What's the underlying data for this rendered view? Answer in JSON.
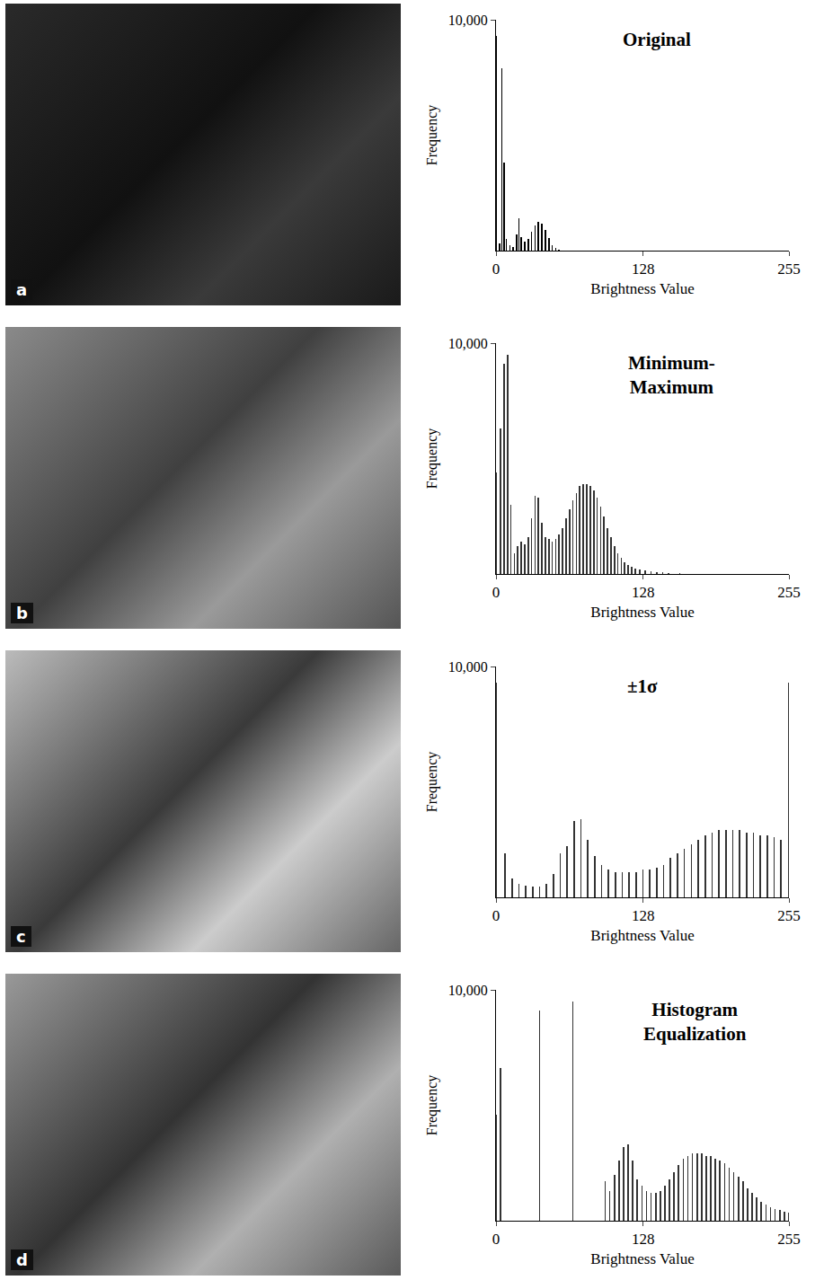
{
  "chart_data": [
    {
      "type": "bar",
      "panel": "a",
      "title": "Original",
      "x_label": "Brightness Value",
      "y_label": "Frequency",
      "x": [
        0,
        3,
        5,
        7,
        9,
        12,
        15,
        18,
        20,
        22,
        25,
        28,
        31,
        34,
        37,
        40,
        43,
        46,
        49,
        52,
        55
      ],
      "values": [
        9300,
        300,
        7900,
        3800,
        500,
        250,
        150,
        700,
        1400,
        600,
        400,
        500,
        800,
        1100,
        1250,
        1150,
        900,
        550,
        250,
        100,
        40
      ],
      "color": "#000000",
      "xlim": [
        0,
        255
      ],
      "ylim": [
        0,
        10000
      ],
      "xticks": [
        0,
        128,
        255
      ],
      "yticks": [
        {
          "value": 10000,
          "label": "10,000"
        }
      ],
      "grid": false
    },
    {
      "type": "bar",
      "panel": "b",
      "title": "Minimum-Maximum",
      "x_label": "Brightness Value",
      "y_label": "Frequency",
      "x": [
        0,
        4,
        7,
        10,
        13,
        16,
        19,
        22,
        25,
        28,
        31,
        34,
        37,
        40,
        43,
        46,
        49,
        52,
        55,
        58,
        61,
        64,
        67,
        70,
        73,
        76,
        79,
        82,
        85,
        88,
        91,
        94,
        97,
        100,
        103,
        106,
        109,
        112,
        115,
        118,
        121,
        125,
        130,
        135,
        140,
        145,
        150,
        160
      ],
      "values": [
        4400,
        6300,
        9100,
        9500,
        3000,
        900,
        1200,
        1400,
        1300,
        1600,
        2400,
        3400,
        3300,
        2200,
        1600,
        1500,
        1400,
        1500,
        1700,
        2000,
        2400,
        2800,
        3200,
        3500,
        3800,
        3900,
        3900,
        3800,
        3600,
        3300,
        2900,
        2500,
        2000,
        1600,
        1200,
        900,
        700,
        500,
        400,
        300,
        250,
        200,
        150,
        120,
        90,
        60,
        40,
        20
      ],
      "color": "#333333",
      "xlim": [
        0,
        255
      ],
      "ylim": [
        0,
        10000
      ],
      "xticks": [
        0,
        128,
        255
      ],
      "yticks": [
        {
          "value": 10000,
          "label": "10,000"
        }
      ],
      "grid": false
    },
    {
      "type": "bar",
      "panel": "c",
      "title": "±1σ",
      "x_label": "Brightness Value",
      "y_label": "Frequency",
      "x": [
        0,
        8,
        14,
        20,
        26,
        32,
        38,
        44,
        50,
        56,
        62,
        68,
        74,
        80,
        86,
        92,
        98,
        104,
        110,
        116,
        122,
        128,
        134,
        140,
        146,
        152,
        158,
        164,
        170,
        176,
        182,
        188,
        194,
        200,
        206,
        212,
        218,
        224,
        230,
        236,
        242,
        248,
        255
      ],
      "values": [
        9300,
        1900,
        800,
        600,
        500,
        450,
        450,
        600,
        1000,
        1900,
        2200,
        3300,
        3400,
        2500,
        1800,
        1400,
        1200,
        1100,
        1100,
        1100,
        1100,
        1200,
        1200,
        1300,
        1400,
        1700,
        1900,
        2100,
        2300,
        2500,
        2700,
        2800,
        2900,
        2900,
        2900,
        2900,
        2800,
        2800,
        2700,
        2700,
        2600,
        2500,
        9300
      ],
      "color": "#333333",
      "xlim": [
        0,
        255
      ],
      "ylim": [
        0,
        10000
      ],
      "xticks": [
        0,
        128,
        255
      ],
      "yticks": [
        {
          "value": 10000,
          "label": "10,000"
        }
      ],
      "grid": false
    },
    {
      "type": "bar",
      "panel": "d",
      "title": "Histogram Equalization",
      "x_label": "Brightness Value",
      "y_label": "Frequency",
      "x": [
        0,
        4,
        38,
        67,
        95,
        99,
        103,
        107,
        111,
        115,
        119,
        123,
        127,
        131,
        135,
        139,
        143,
        147,
        151,
        155,
        159,
        163,
        167,
        171,
        175,
        179,
        183,
        187,
        191,
        195,
        199,
        203,
        207,
        211,
        215,
        219,
        223,
        227,
        231,
        235,
        239,
        243,
        247,
        251,
        255
      ],
      "values": [
        4600,
        6600,
        9100,
        9500,
        1700,
        1300,
        2000,
        2600,
        3200,
        3300,
        2600,
        1800,
        1500,
        1300,
        1200,
        1200,
        1300,
        1500,
        1800,
        2100,
        2400,
        2700,
        2800,
        2900,
        2900,
        2900,
        2800,
        2800,
        2700,
        2600,
        2500,
        2300,
        2100,
        1900,
        1700,
        1400,
        1200,
        1000,
        800,
        700,
        600,
        500,
        450,
        400,
        350
      ],
      "color": "#333333",
      "xlim": [
        0,
        255
      ],
      "ylim": [
        0,
        10000
      ],
      "xticks": [
        0,
        128,
        255
      ],
      "yticks": [
        {
          "value": 10000,
          "label": "10,000"
        }
      ],
      "grid": false
    }
  ]
}
